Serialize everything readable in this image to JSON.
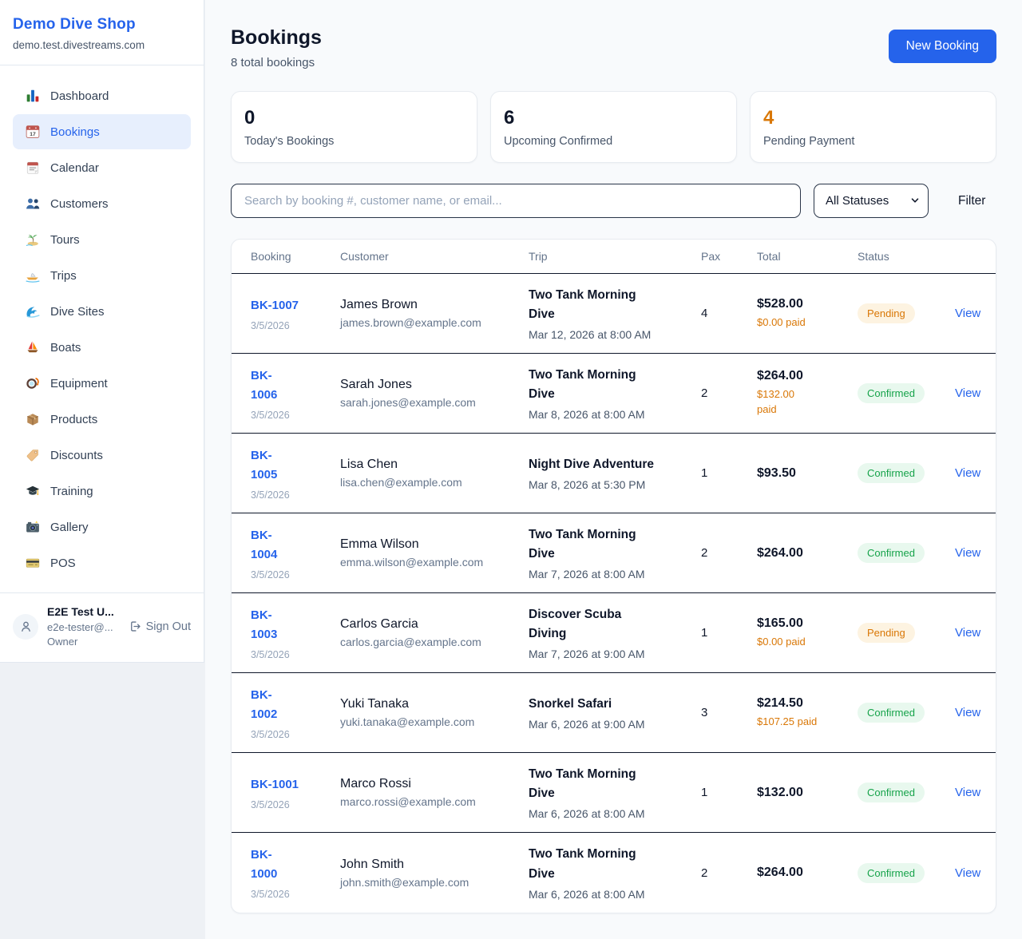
{
  "colors": {
    "accent_blue": "#2563eb",
    "orange": "#d97706",
    "green": "#16a34a",
    "pending_badge_bg": "#fdf3e1",
    "confirmed_badge_bg": "#e8f8ee"
  },
  "sidebar": {
    "brand": {
      "name": "Demo Dive Shop",
      "domain": "demo.test.divestreams.com"
    },
    "nav": [
      {
        "label": "Dashboard",
        "icon": "bar-chart",
        "active": false
      },
      {
        "label": "Bookings",
        "icon": "calendar-17",
        "active": true
      },
      {
        "label": "Calendar",
        "icon": "calendar",
        "active": false
      },
      {
        "label": "Customers",
        "icon": "people",
        "active": false
      },
      {
        "label": "Tours",
        "icon": "island",
        "active": false
      },
      {
        "label": "Trips",
        "icon": "speedboat",
        "active": false
      },
      {
        "label": "Dive Sites",
        "icon": "wave",
        "active": false
      },
      {
        "label": "Boats",
        "icon": "sailboat",
        "active": false
      },
      {
        "label": "Equipment",
        "icon": "dive-mask",
        "active": false
      },
      {
        "label": "Products",
        "icon": "package",
        "active": false
      },
      {
        "label": "Discounts",
        "icon": "tag",
        "active": false
      },
      {
        "label": "Training",
        "icon": "grad-cap",
        "active": false
      },
      {
        "label": "Gallery",
        "icon": "camera",
        "active": false
      },
      {
        "label": "POS",
        "icon": "credit-card",
        "active": false
      }
    ],
    "user": {
      "name": "E2E Test U...",
      "email": "e2e-tester@...",
      "role": "Owner",
      "sign_out": "Sign Out"
    }
  },
  "header": {
    "title": "Bookings",
    "subtitle": "8 total bookings",
    "new_booking": "New Booking"
  },
  "stats": [
    {
      "value": "0",
      "label": "Today's Bookings",
      "orange": false
    },
    {
      "value": "6",
      "label": "Upcoming Confirmed",
      "orange": false
    },
    {
      "value": "4",
      "label": "Pending Payment",
      "orange": true
    }
  ],
  "filters": {
    "search_placeholder": "Search by booking #, customer name, or email...",
    "status_select": "All Statuses",
    "filter_button": "Filter"
  },
  "table": {
    "columns": [
      "Booking",
      "Customer",
      "Trip",
      "Pax",
      "Total",
      "Status"
    ],
    "view_label": "View",
    "rows": [
      {
        "id": "BK-1007",
        "date": "3/5/2026",
        "customer": "James Brown",
        "email": "james.brown@example.com",
        "trip": "Two Tank Morning\nDive",
        "trip_datetime": "Mar 12, 2026 at 8:00 AM",
        "pax": "4",
        "total": "$528.00",
        "paid": "$0.00 paid",
        "status": "Pending"
      },
      {
        "id": "BK-\n1006",
        "date": "3/5/2026",
        "customer": "Sarah Jones",
        "email": "sarah.jones@example.com",
        "trip": "Two Tank Morning\nDive",
        "trip_datetime": "Mar 8, 2026 at 8:00 AM",
        "pax": "2",
        "total": "$264.00",
        "paid": "$132.00\npaid",
        "status": "Confirmed"
      },
      {
        "id": "BK-\n1005",
        "date": "3/5/2026",
        "customer": "Lisa Chen",
        "email": "lisa.chen@example.com",
        "trip": "Night Dive Adventure",
        "trip_datetime": "Mar 8, 2026 at 5:30 PM",
        "pax": "1",
        "total": "$93.50",
        "paid": "",
        "status": "Confirmed"
      },
      {
        "id": "BK-\n1004",
        "date": "3/5/2026",
        "customer": "Emma Wilson",
        "email": "emma.wilson@example.com",
        "trip": "Two Tank Morning\nDive",
        "trip_datetime": "Mar 7, 2026 at 8:00 AM",
        "pax": "2",
        "total": "$264.00",
        "paid": "",
        "status": "Confirmed"
      },
      {
        "id": "BK-\n1003",
        "date": "3/5/2026",
        "customer": "Carlos Garcia",
        "email": "carlos.garcia@example.com",
        "trip": "Discover Scuba\nDiving",
        "trip_datetime": "Mar 7, 2026 at 9:00 AM",
        "pax": "1",
        "total": "$165.00",
        "paid": "$0.00 paid",
        "status": "Pending"
      },
      {
        "id": "BK-\n1002",
        "date": "3/5/2026",
        "customer": "Yuki Tanaka",
        "email": "yuki.tanaka@example.com",
        "trip": "Snorkel Safari",
        "trip_datetime": "Mar 6, 2026 at 9:00 AM",
        "pax": "3",
        "total": "$214.50",
        "paid": "$107.25 paid",
        "status": "Confirmed"
      },
      {
        "id": "BK-1001",
        "date": "3/5/2026",
        "customer": "Marco Rossi",
        "email": "marco.rossi@example.com",
        "trip": "Two Tank Morning\nDive",
        "trip_datetime": "Mar 6, 2026 at 8:00 AM",
        "pax": "1",
        "total": "$132.00",
        "paid": "",
        "status": "Confirmed"
      },
      {
        "id": "BK-\n1000",
        "date": "3/5/2026",
        "customer": "John Smith",
        "email": "john.smith@example.com",
        "trip": "Two Tank Morning\nDive",
        "trip_datetime": "Mar 6, 2026 at 8:00 AM",
        "pax": "2",
        "total": "$264.00",
        "paid": "",
        "status": "Confirmed"
      }
    ]
  }
}
